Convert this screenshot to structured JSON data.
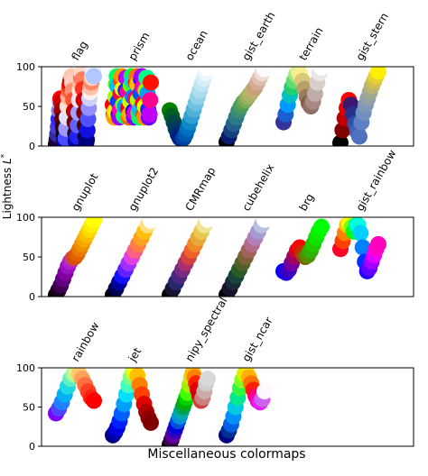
{
  "chart_data": {
    "type": "scatter",
    "xlabel": "Miscellaneous colormaps",
    "ylabel": "Lightness $L^*$",
    "ylim": [
      0,
      100
    ],
    "yticks": [
      "0",
      "50",
      "100"
    ],
    "grid": false,
    "legend": "none",
    "panels": [
      {
        "colormaps": [
          {
            "name": "flag",
            "L": [
              2,
              8,
              15,
              24,
              34,
              45,
              55,
              60,
              55,
              45,
              34,
              24,
              15,
              8,
              2,
              10,
              22,
              36,
              50,
              62,
              70,
              76,
              80,
              84,
              88,
              80,
              70,
              58,
              44,
              30,
              16,
              6,
              3,
              12,
              26,
              42,
              58,
              70,
              78,
              86,
              92,
              84,
              72,
              58,
              42,
              26,
              12,
              4,
              8,
              20,
              34,
              48,
              60,
              68,
              74,
              80,
              86,
              92,
              96,
              88
            ],
            "colors": [
              "#000000",
              "#200040",
              "#3030a0",
              "#4a3adc",
              "#2b2bff",
              "#8080ff",
              "#c0c0ff",
              "#ff0000",
              "#d00000",
              "#a00000",
              "#600000",
              "#300000",
              "#100010",
              "#000060",
              "#0000c0",
              "#4a4aff",
              "#9a9aff",
              "#e0e0ff",
              "#ffe0d0",
              "#ffb090",
              "#ff6040",
              "#ff2010",
              "#e00000",
              "#b00000",
              "#ffc8b0",
              "#ffd0c0",
              "#ff9070",
              "#ff5030",
              "#c00000",
              "#700000",
              "#300010",
              "#000040",
              "#0000a0",
              "#2020ff",
              "#6060ff",
              "#a0a0ff",
              "#e6e6ff",
              "#ffe8e0",
              "#ffb8a0",
              "#ff7050",
              "#ffd8c8",
              "#ff8060",
              "#ff3020",
              "#d00000",
              "#800000",
              "#400000",
              "#100010",
              "#000030",
              "#000080",
              "#1010e0",
              "#5050ff",
              "#9090ff",
              "#d0d0ff",
              "#fff0ea",
              "#ffc0a8",
              "#ff8868",
              "#ffd8c8",
              "#c0d8ff",
              "#e6f0ff",
              "#b0c8ff"
            ]
          },
          {
            "name": "prism",
            "L": [
              52,
              40,
              36,
              44,
              62,
              78,
              88,
              76,
              56,
              40,
              36,
              46,
              66,
              82,
              88,
              72,
              52,
              38,
              38,
              50,
              70,
              86,
              86,
              68,
              48,
              36,
              40,
              56,
              76,
              88,
              82,
              62,
              44,
              36,
              42,
              60,
              80,
              88,
              78,
              58,
              42,
              36,
              46,
              66,
              84,
              88,
              74,
              54,
              40,
              36,
              50,
              70,
              86,
              86,
              66,
              46,
              36,
              40,
              58,
              80
            ],
            "colors": [
              "#ff0000",
              "#ff5000",
              "#ffa000",
              "#f0f000",
              "#a0ff00",
              "#40ff00",
              "#00ff60",
              "#00c0ff",
              "#0040ff",
              "#4000ff",
              "#a000ff",
              "#ff00c0",
              "#ff0040",
              "#ff4000",
              "#ff9000",
              "#e0ff00",
              "#80ff00",
              "#20ff20",
              "#00ff80",
              "#00a0ff",
              "#2020ff",
              "#6000ff",
              "#c000ff",
              "#ff0090",
              "#ff0010",
              "#ff6000",
              "#ffb000",
              "#d0ff00",
              "#60ff00",
              "#00ff40",
              "#00e0c0",
              "#0080ff",
              "#1000ff",
              "#8000ff",
              "#e000e0",
              "#ff0060",
              "#ff2000",
              "#ff7000",
              "#ffc000",
              "#b0ff00",
              "#40ff00",
              "#00ff60",
              "#00c0ff",
              "#0050ff",
              "#3000ff",
              "#a000ff",
              "#ff00c0",
              "#ff0030",
              "#ff4000",
              "#ff9000",
              "#e0ff00",
              "#80ff00",
              "#20ff20",
              "#00ff90",
              "#00a0ff",
              "#2020ff",
              "#7000ff",
              "#c000ff",
              "#ff0090",
              "#ff1000"
            ]
          },
          {
            "name": "ocean",
            "L": [
              45,
              38,
              30,
              22,
              15,
              10,
              8,
              10,
              15,
              22,
              30,
              38,
              46,
              54,
              62,
              70,
              78,
              85,
              92,
              98
            ],
            "colors": [
              "#008000",
              "#006020",
              "#004a40",
              "#003a5a",
              "#002a70",
              "#001a80",
              "#002a90",
              "#0040a0",
              "#0058b0",
              "#0070c0",
              "#1088c8",
              "#30a0d0",
              "#50b0d8",
              "#70c0e0",
              "#90d0e8",
              "#a8dcee",
              "#c0e6f2",
              "#d6eef6",
              "#eaf6fa",
              "#ffffff"
            ]
          },
          {
            "name": "gist_earth",
            "L": [
              5,
              12,
              20,
              28,
              36,
              44,
              50,
              55,
              58,
              62,
              66,
              70,
              74,
              80,
              86,
              92,
              97
            ],
            "colors": [
              "#000000",
              "#0a1a70",
              "#184080",
              "#22608a",
              "#2a7888",
              "#3a8a78",
              "#4a9a60",
              "#5aa050",
              "#78aa58",
              "#98b060",
              "#b0b468",
              "#c0b070",
              "#c8a078",
              "#d4aa94",
              "#e0c0b0",
              "#eeded6",
              "#fdfbfb"
            ]
          },
          {
            "name": "terrain",
            "L": [
              30,
              40,
              52,
              64,
              74,
              82,
              90,
              95,
              90,
              82,
              72,
              62,
              54,
              50,
              56,
              66,
              80,
              92,
              99
            ],
            "colors": [
              "#333399",
              "#1a5fd0",
              "#0099ff",
              "#00c0c0",
              "#20d070",
              "#60dd70",
              "#a0e880",
              "#e0f290",
              "#f8f090",
              "#d8c878",
              "#b8a068",
              "#987c5a",
              "#80604c",
              "#906e62",
              "#a88a82",
              "#c0aca6",
              "#d8cecb",
              "#ece6e4",
              "#ffffff"
            ]
          },
          {
            "name": "gist_stern",
            "L": [
              4,
              20,
              35,
              48,
              58,
              52,
              40,
              28,
              18,
              12,
              30,
              42,
              52,
              60,
              68,
              76,
              82,
              88,
              94
            ],
            "colors": [
              "#000000",
              "#800000",
              "#c00000",
              "#e00000",
              "#ff0000",
              "#3a1a70",
              "#283090",
              "#3050a8",
              "#4060b8",
              "#5070c0",
              "#6080c4",
              "#7090c0",
              "#8098b8",
              "#90a0a8",
              "#a0a890",
              "#b8b470",
              "#d0c050",
              "#e8d030",
              "#fff000"
            ]
          }
        ]
      },
      {
        "colormaps": [
          {
            "name": "gnuplot",
            "L": [
              2,
              8,
              14,
              22,
              30,
              38,
              44,
              48,
              50,
              54,
              60,
              66,
              72,
              78,
              84,
              90,
              96
            ],
            "colors": [
              "#000000",
              "#200020",
              "#400050",
              "#600080",
              "#8000a0",
              "#9a10c0",
              "#b020d0",
              "#c83a80",
              "#d45000",
              "#e06000",
              "#e87a00",
              "#f09000",
              "#f4a800",
              "#f8c000",
              "#fad800",
              "#fcee00",
              "#ffff00"
            ]
          },
          {
            "name": "gnuplot2",
            "L": [
              2,
              10,
              18,
              26,
              34,
              42,
              50,
              58,
              66,
              74,
              82,
              90,
              96
            ],
            "colors": [
              "#000000",
              "#000050",
              "#0000a0",
              "#1010ff",
              "#6020ff",
              "#a030ff",
              "#e040e0",
              "#ff6080",
              "#ff8040",
              "#ffa020",
              "#ffc010",
              "#ffe080",
              "#ffffff"
            ]
          },
          {
            "name": "CMRmap",
            "L": [
              2,
              10,
              18,
              26,
              34,
              42,
              50,
              58,
              66,
              74,
              82,
              90,
              97
            ],
            "colors": [
              "#000000",
              "#141430",
              "#26266a",
              "#4a2680",
              "#7a2a82",
              "#a8306c",
              "#d04040",
              "#f0602a",
              "#f08828",
              "#e8a838",
              "#e8c850",
              "#f0e498",
              "#ffffff"
            ]
          },
          {
            "name": "cubehelix",
            "L": [
              2,
              10,
              18,
              26,
              34,
              42,
              50,
              58,
              66,
              74,
              82,
              90,
              97
            ],
            "colors": [
              "#000000",
              "#180f28",
              "#1a2a3a",
              "#18463a",
              "#2a5a28",
              "#4e6228",
              "#7a6236",
              "#a2605a",
              "#b46a8a",
              "#b07eb8",
              "#a69ad4",
              "#b8c0e0",
              "#ffffff"
            ]
          },
          {
            "name": "brg",
            "L": [
              32,
              30,
              34,
              42,
              50,
              58,
              62,
              55,
              50,
              52,
              58,
              66,
              74,
              82,
              88
            ],
            "colors": [
              "#0000ff",
              "#2000e0",
              "#4000c0",
              "#7000a0",
              "#a00060",
              "#d00030",
              "#ff0000",
              "#c03000",
              "#806000",
              "#509000",
              "#30b000",
              "#20c800",
              "#10e000",
              "#08f000",
              "#00ff00"
            ]
          },
          {
            "name": "gist_rainbow",
            "L": [
              60,
              70,
              80,
              90,
              92,
              88,
              82,
              90,
              90,
              80,
              62,
              44,
              32,
              36,
              44,
              52,
              60,
              66
            ],
            "colors": [
              "#ff0028",
              "#ff4000",
              "#ff8000",
              "#ffc000",
              "#ffff00",
              "#80ff00",
              "#00ff00",
              "#00ff80",
              "#00ffe0",
              "#00d0ff",
              "#0080ff",
              "#0030ff",
              "#2000ff",
              "#6000ff",
              "#a000ff",
              "#e000ff",
              "#ff00d0",
              "#ff00bf"
            ]
          }
        ]
      },
      {
        "colormaps": [
          {
            "name": "rainbow",
            "L": [
              42,
              48,
              56,
              66,
              76,
              86,
              92,
              94,
              92,
              86,
              78,
              70,
              62,
              58
            ],
            "colors": [
              "#8000ff",
              "#5040ff",
              "#2080ff",
              "#00b0f0",
              "#20d8e0",
              "#60f0c0",
              "#a0fe98",
              "#e0f088",
              "#ffc870",
              "#ffa058",
              "#ff7040",
              "#ff4020",
              "#ff2010",
              "#ff0000"
            ]
          },
          {
            "name": "jet",
            "L": [
              14,
              18,
              24,
              32,
              42,
              54,
              66,
              78,
              88,
              94,
              96,
              90,
              78,
              66,
              54,
              44,
              36,
              30
            ],
            "colors": [
              "#000080",
              "#0000b0",
              "#0000e0",
              "#0020ff",
              "#0060ff",
              "#00a0ff",
              "#00e0ff",
              "#40ffc0",
              "#80ff80",
              "#c0ff40",
              "#ffff00",
              "#ffc000",
              "#ff8000",
              "#ff4000",
              "#e00000",
              "#b00000",
              "#900000",
              "#800000"
            ]
          },
          {
            "name": "nipy_spectral",
            "L": [
              2,
              8,
              14,
              20,
              26,
              32,
              38,
              44,
              50,
              56,
              62,
              68,
              78,
              88,
              94,
              88,
              80,
              72,
              64,
              58,
              62,
              70,
              80,
              86
            ],
            "colors": [
              "#000000",
              "#400050",
              "#6000a0",
              "#3000c0",
              "#0000d8",
              "#0050e0",
              "#0090dd",
              "#00aaaa",
              "#00a050",
              "#00b000",
              "#00d000",
              "#40ff00",
              "#a0f000",
              "#e0e000",
              "#ffc000",
              "#ff8000",
              "#ff2000",
              "#e00000",
              "#cc0000",
              "#cc4040",
              "#cc8080",
              "#ccaaaa",
              "#cccccc",
              "#d8d8d8"
            ]
          },
          {
            "name": "gist_ncar",
            "L": [
              14,
              20,
              28,
              38,
              50,
              62,
              74,
              84,
              92,
              94,
              88,
              80,
              72,
              64,
              58,
              56,
              60,
              70
            ],
            "colors": [
              "#000080",
              "#003090",
              "#0060e0",
              "#0090ff",
              "#00c8e0",
              "#00e890",
              "#30f840",
              "#80ff20",
              "#c0ff00",
              "#ffe000",
              "#ffb000",
              "#ff7000",
              "#ff2000",
              "#ff0070",
              "#ff00c0",
              "#e020ff",
              "#d060f0",
              "#fef8fe"
            ]
          }
        ]
      }
    ]
  }
}
